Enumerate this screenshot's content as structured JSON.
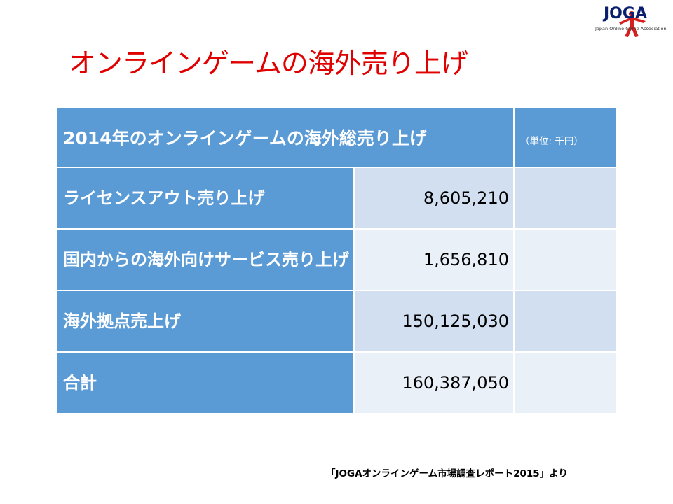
{
  "logo": {
    "name": "JOGA",
    "subtitle": "Japan Online Game Association",
    "colors": {
      "text": "#0b1e6e",
      "figure": "#d62020"
    }
  },
  "title": "オンラインゲームの海外売り上げ",
  "table": {
    "header": "2014年のオンラインゲームの海外総売り上げ",
    "unit": "（単位: 千円）",
    "rows": [
      {
        "label": "ライセンスアウト売り上げ",
        "value": "8,605,210"
      },
      {
        "label": "国内からの海外向けサービス売り上げ",
        "value": "1,656,810"
      },
      {
        "label": "海外拠点売上げ",
        "value": "150,125,030"
      },
      {
        "label": "合計",
        "value": "160,387,050"
      }
    ]
  },
  "source": "「JOGAオンラインゲーム市場調査レポート2015」より",
  "colors": {
    "title": "#e00000",
    "header_bg": "#5b9bd5",
    "row_dark": "#d2dff0",
    "row_light": "#eaf0f8"
  }
}
